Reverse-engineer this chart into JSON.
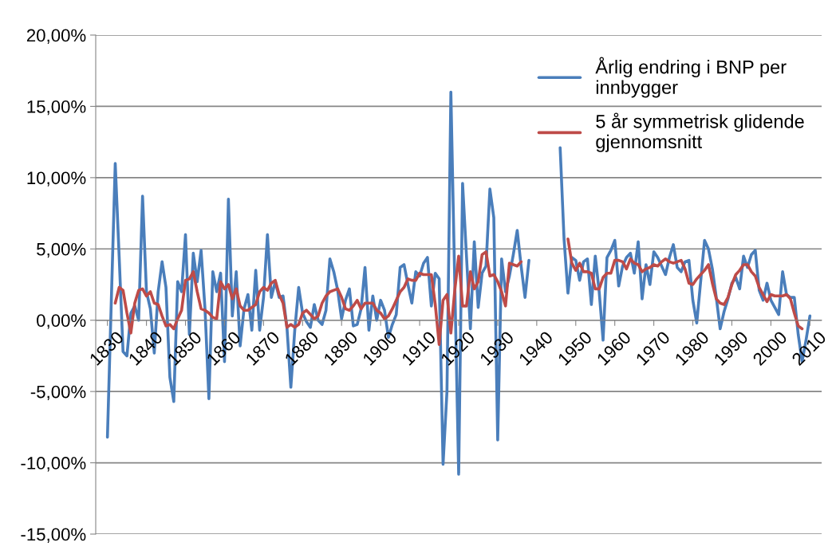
{
  "chart_data": {
    "type": "line",
    "x": [
      1830,
      1831,
      1832,
      1833,
      1834,
      1835,
      1836,
      1837,
      1838,
      1839,
      1840,
      1841,
      1842,
      1843,
      1844,
      1845,
      1846,
      1847,
      1848,
      1849,
      1850,
      1851,
      1852,
      1853,
      1854,
      1855,
      1856,
      1857,
      1858,
      1859,
      1860,
      1861,
      1862,
      1863,
      1864,
      1865,
      1866,
      1867,
      1868,
      1869,
      1870,
      1871,
      1872,
      1873,
      1874,
      1875,
      1876,
      1877,
      1878,
      1879,
      1880,
      1881,
      1882,
      1883,
      1884,
      1885,
      1886,
      1887,
      1888,
      1889,
      1890,
      1891,
      1892,
      1893,
      1894,
      1895,
      1896,
      1897,
      1898,
      1899,
      1900,
      1901,
      1902,
      1903,
      1904,
      1905,
      1906,
      1907,
      1908,
      1909,
      1910,
      1911,
      1912,
      1913,
      1914,
      1915,
      1916,
      1917,
      1918,
      1919,
      1920,
      1921,
      1922,
      1923,
      1924,
      1925,
      1926,
      1927,
      1928,
      1929,
      1930,
      1931,
      1932,
      1933,
      1934,
      1935,
      1936,
      1937,
      1938,
      1939,
      1940,
      1941,
      1942,
      1943,
      1944,
      1945,
      1946,
      1947,
      1948,
      1949,
      1950,
      1951,
      1952,
      1953,
      1954,
      1955,
      1956,
      1957,
      1958,
      1959,
      1960,
      1961,
      1962,
      1963,
      1964,
      1965,
      1966,
      1967,
      1968,
      1969,
      1970,
      1971,
      1972,
      1973,
      1974,
      1975,
      1976,
      1977,
      1978,
      1979,
      1980,
      1981,
      1982,
      1983,
      1984,
      1985,
      1986,
      1987,
      1988,
      1989,
      1990,
      1991,
      1992,
      1993,
      1994,
      1995,
      1996,
      1997,
      1998,
      1999,
      2000,
      2001,
      2002,
      2003,
      2004,
      2005,
      2006,
      2007,
      2008,
      2009,
      2010
    ],
    "series": [
      {
        "name": "Årlig endring i BNP per\ninnbygger",
        "color": "#4a7ebb",
        "values": [
          -8.2,
          1.4,
          11.0,
          4.5,
          -2.2,
          -2.5,
          0.5,
          1.0,
          0.0,
          8.7,
          2.0,
          0.8,
          -2.3,
          2.0,
          4.1,
          2.3,
          -4.0,
          -5.7,
          2.7,
          2.0,
          6.0,
          -1.0,
          4.7,
          2.7,
          4.9,
          0.8,
          -5.5,
          3.4,
          2.0,
          3.3,
          -2.9,
          8.5,
          0.3,
          3.4,
          -1.8,
          0.8,
          1.8,
          -0.7,
          3.5,
          -0.7,
          1.6,
          6.0,
          1.6,
          2.7,
          1.6,
          1.7,
          -0.5,
          -4.7,
          -0.7,
          2.3,
          0.5,
          -0.1,
          -0.5,
          1.1,
          0.0,
          -0.3,
          0.7,
          4.3,
          3.4,
          2.1,
          0.1,
          1.4,
          2.2,
          -0.4,
          -0.3,
          0.8,
          3.7,
          -0.7,
          1.7,
          0.0,
          1.4,
          0.7,
          -1.2,
          -0.3,
          0.4,
          3.7,
          3.9,
          2.5,
          1.2,
          3.4,
          3.1,
          4.0,
          4.4,
          1.0,
          3.3,
          2.9,
          -10.1,
          -5.0,
          16.0,
          2.6,
          -10.8,
          9.6,
          4.5,
          -0.6,
          5.5,
          0.9,
          3.3,
          3.8,
          9.2,
          7.2,
          -8.4,
          4.3,
          2.0,
          3.1,
          4.6,
          6.3,
          3.8,
          1.6,
          4.2,
          null,
          null,
          null,
          null,
          null,
          null,
          null,
          12.1,
          5.7,
          1.9,
          4.4,
          4.2,
          2.8,
          4.1,
          4.3,
          1.1,
          4.5,
          2.0,
          -1.4,
          4.4,
          4.9,
          5.6,
          2.4,
          3.8,
          4.4,
          4.7,
          3.3,
          5.5,
          1.5,
          3.9,
          2.5,
          4.8,
          4.4,
          3.8,
          3.2,
          4.4,
          5.3,
          3.7,
          3.4,
          4.1,
          4.2,
          1.4,
          -0.2,
          2.7,
          5.6,
          5.0,
          3.6,
          1.6,
          -0.6,
          0.6,
          1.5,
          2.6,
          3.0,
          2.2,
          4.5,
          3.7,
          4.6,
          4.9,
          2.1,
          1.4,
          2.6,
          1.4,
          0.9,
          0.4,
          3.4,
          1.8,
          1.6,
          1.6,
          -1.0,
          -2.9,
          -1.4,
          0.3
        ]
      },
      {
        "name": "5 år symmetrisk glidende\ngjennomsnitt",
        "color": "#be4b48",
        "values": [
          null,
          null,
          1.2,
          2.3,
          2.1,
          0.5,
          -0.9,
          1.2,
          2.1,
          2.2,
          1.7,
          2.0,
          1.2,
          1.1,
          0.3,
          -0.4,
          -0.3,
          -0.6,
          0.1,
          0.7,
          2.8,
          2.9,
          3.4,
          2.0,
          0.8,
          0.7,
          0.5,
          0.2,
          0.1,
          2.7,
          2.2,
          2.5,
          1.5,
          2.2,
          1.0,
          0.7,
          0.7,
          0.9,
          1.1,
          2.0,
          2.3,
          2.1,
          2.6,
          2.8,
          1.8,
          1.2,
          -0.5,
          -0.3,
          -0.5,
          -0.3,
          0.5,
          0.7,
          0.4,
          0.1,
          0.3,
          1.2,
          1.7,
          2.0,
          2.1,
          2.2,
          1.6,
          0.8,
          0.7,
          1.0,
          1.4,
          0.8,
          1.2,
          1.2,
          1.2,
          0.7,
          0.5,
          0.1,
          0.3,
          0.8,
          1.4,
          2.0,
          2.3,
          2.9,
          2.8,
          2.8,
          3.3,
          3.2,
          3.2,
          3.2,
          1.1,
          -1.7,
          1.4,
          1.8,
          -0.9,
          2.1,
          4.5,
          1.0,
          1.0,
          3.4,
          2.2,
          2.7,
          4.6,
          4.8,
          3.1,
          3.2,
          2.7,
          2.0,
          1.0,
          4.0,
          3.9,
          3.8,
          4.1,
          null,
          null,
          null,
          null,
          null,
          null,
          null,
          null,
          null,
          null,
          null,
          5.7,
          4.0,
          3.5,
          4.0,
          3.4,
          3.4,
          3.3,
          2.2,
          2.2,
          3.0,
          3.3,
          3.3,
          4.2,
          4.2,
          4.1,
          3.6,
          4.3,
          4.0,
          3.9,
          3.4,
          3.6,
          3.7,
          3.9,
          3.8,
          4.1,
          4.3,
          4.1,
          4.0,
          4.1,
          4.2,
          3.6,
          2.6,
          2.5,
          2.9,
          3.2,
          3.5,
          3.9,
          2.6,
          1.5,
          1.2,
          1.1,
          1.6,
          2.5,
          3.2,
          3.5,
          3.9,
          3.9,
          3.4,
          3.1,
          2.3,
          1.8,
          1.3,
          1.8,
          1.7,
          1.7,
          1.7,
          1.8,
          1.5,
          0.5,
          -0.4,
          -0.6,
          null,
          null
        ]
      }
    ],
    "xlim": [
      1827,
      2013
    ],
    "xticks": [
      1830,
      1840,
      1850,
      1860,
      1870,
      1880,
      1890,
      1900,
      1910,
      1920,
      1930,
      1940,
      1950,
      1960,
      1970,
      1980,
      1990,
      2000,
      2010
    ],
    "ylim": [
      -15,
      20
    ],
    "yticks": [
      {
        "value": -15,
        "label": "-15,00%"
      },
      {
        "value": -10,
        "label": "-10,00%"
      },
      {
        "value": -5,
        "label": "-5,00%"
      },
      {
        "value": 0,
        "label": "0,00%"
      },
      {
        "value": 5,
        "label": "5,00%"
      },
      {
        "value": 10,
        "label": "10,00%"
      },
      {
        "value": 15,
        "label": "15,00%"
      },
      {
        "value": 20,
        "label": "20,00%"
      }
    ],
    "grid": "y",
    "legend": "top right",
    "line_style": "solid",
    "marker": "none"
  }
}
